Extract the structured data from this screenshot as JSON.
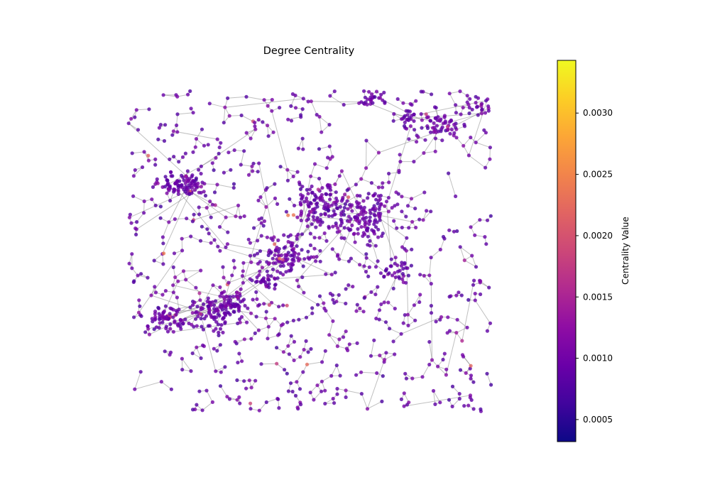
{
  "chart_data": {
    "type": "network",
    "title": "Degree Centrality",
    "colorbar": {
      "label": "Centrality Value",
      "colormap": "plasma",
      "range": [
        0.00032,
        0.00343
      ],
      "ticks": [
        0.0005,
        0.001,
        0.0015,
        0.002,
        0.0025,
        0.003
      ],
      "tick_labels": [
        "0.0005",
        "0.0010",
        "0.0015",
        "0.0020",
        "0.0025",
        "0.0030"
      ]
    },
    "axes_visible": false,
    "node_count_approx": 1600,
    "node_alpha": 0.8,
    "edge_color": "#8c8c8c",
    "typical_node_value": 0.0009,
    "high_value_nodes_present": true
  }
}
